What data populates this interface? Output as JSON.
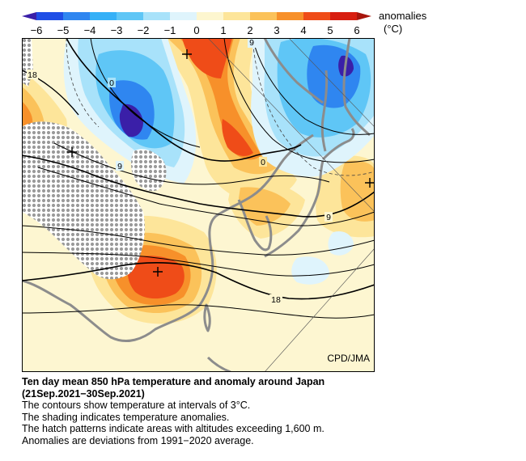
{
  "legend": {
    "title": "anomalies",
    "unit": "(°C)",
    "ticks": [
      "−6",
      "−5",
      "−4",
      "−3",
      "−2",
      "−1",
      "0",
      "1",
      "2",
      "3",
      "4",
      "5",
      "6"
    ],
    "colors": [
      "#3a1fa8",
      "#1f4ee6",
      "#2f86f0",
      "#35b0f7",
      "#7fd3f8",
      "#c9eefb",
      "#fdf6cf",
      "#fde59a",
      "#fbc25a",
      "#f7902a",
      "#ef4c18",
      "#d81e10",
      "#a8150c"
    ]
  },
  "map": {
    "credit": "CPD/JMA",
    "contour_labels": [
      "18",
      "0",
      "9",
      "0",
      "9",
      "9",
      "18"
    ],
    "colors": {
      "neutral": "#fdf6d1",
      "coast": "#8c8c8c",
      "hatch": "#9a9a9a",
      "contour": "#000000"
    }
  },
  "caption": {
    "title": "Ten day mean 850 hPa temperature and anomaly around Japan",
    "period": "(21Sep.2021−30Sep.2021)",
    "lines": [
      "The contours show temperature at intervals of 3°C.",
      "The shading indicates temperature anomalies.",
      "The hatch patterns indicate areas with altitudes exceeding 1,600 m.",
      "Anomalies are deviations from 1991−2020 average."
    ]
  }
}
